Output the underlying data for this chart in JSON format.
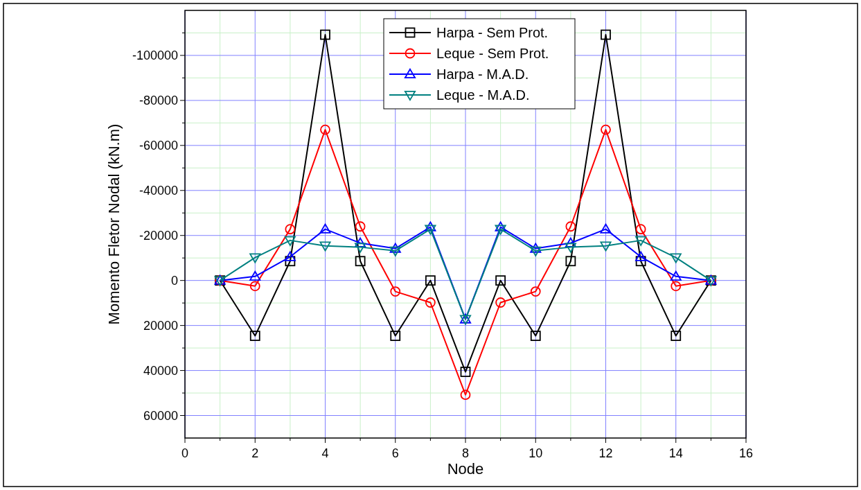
{
  "chart_data": {
    "type": "line",
    "xlabel": "Node",
    "ylabel": "Momento Fletor Nodal (kN.m)",
    "x": [
      1,
      2,
      3,
      4,
      5,
      6,
      7,
      8,
      9,
      10,
      11,
      12,
      13,
      14,
      15
    ],
    "xlim": [
      0,
      16
    ],
    "xticks": [
      0,
      {
        "value": 1,
        "label": null
      },
      2,
      {
        "value": 3,
        "label": null
      },
      4,
      {
        "value": 5,
        "label": null
      },
      6,
      {
        "value": 7,
        "label": null
      },
      8,
      {
        "value": 9,
        "label": null
      },
      10,
      {
        "value": 11,
        "label": null
      },
      12,
      {
        "value": 13,
        "label": null
      },
      14,
      {
        "value": 15,
        "label": null
      },
      16
    ],
    "ylim": [
      70000,
      -120000
    ],
    "yticks": [
      {
        "value": -110000,
        "label": null
      },
      -100000,
      {
        "value": -90000,
        "label": null
      },
      -80000,
      {
        "value": -70000,
        "label": null
      },
      -60000,
      {
        "value": -50000,
        "label": null
      },
      -40000,
      {
        "value": -30000,
        "label": null
      },
      -20000,
      {
        "value": -10000,
        "label": null
      },
      0,
      {
        "value": 10000,
        "label": null
      },
      20000,
      {
        "value": 30000,
        "label": null
      },
      40000,
      {
        "value": 50000,
        "label": null
      },
      60000
    ],
    "grid": true,
    "legend": "top",
    "line_style": "solid",
    "series": [
      {
        "name": "Harpa - Sem Prot.",
        "color": "#000000",
        "marker": "square",
        "values": [
          0,
          24600,
          -8600,
          -109200,
          -8600,
          24600,
          0,
          40600,
          0,
          24600,
          -8600,
          -109200,
          -8600,
          24600,
          0
        ]
      },
      {
        "name": "Leque - Sem Prot.",
        "color": "#ff0000",
        "marker": "circle",
        "values": [
          0,
          2500,
          -22800,
          -67000,
          -24000,
          4900,
          9800,
          50800,
          9800,
          4900,
          -24000,
          -67000,
          -22800,
          2500,
          0
        ]
      },
      {
        "name": "Harpa - M.A.D.",
        "color": "#0000ff",
        "marker": "triangle",
        "values": [
          0,
          -1800,
          -10500,
          -22800,
          -16600,
          -14200,
          -23700,
          17200,
          -23700,
          -14200,
          -16600,
          -22800,
          -10500,
          -1800,
          0
        ]
      },
      {
        "name": "Leque - M.A.D.",
        "color": "#008080",
        "marker": "triangle-down",
        "values": [
          0,
          -10200,
          -17800,
          -15400,
          -14800,
          -13200,
          -22800,
          17200,
          -22800,
          -13200,
          -14800,
          -15400,
          -17800,
          -10200,
          0
        ]
      }
    ]
  }
}
